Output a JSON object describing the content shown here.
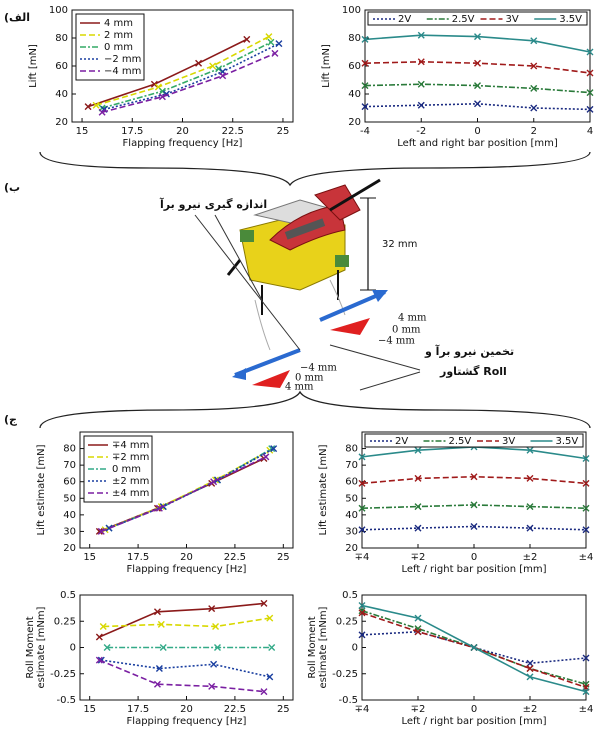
{
  "panels": {
    "a": "(الف",
    "b": "(ب",
    "c": "(ج"
  },
  "diagram": {
    "measure_label": "اندازه گیری نیرو برآ",
    "height_label": "32 mm",
    "upper_positions": [
      "4 mm",
      "0 mm",
      "−4 mm"
    ],
    "lower_positions": [
      "−4 mm",
      "0 mm",
      "4 mm"
    ],
    "estimate_label": [
      "تخمین نیرو برآ و",
      "گشتاور Roll"
    ]
  },
  "chart_data": [
    {
      "type": "line",
      "xlabel": "Flapping frequency [Hz]",
      "ylabel": [
        "Lift [mN]"
      ],
      "legend": "upper left",
      "xlim": [
        14.5,
        25.5
      ],
      "xticks": [
        15,
        17.5,
        20,
        22.5,
        25
      ],
      "ylim": [
        20,
        100
      ],
      "yticks": [
        20,
        40,
        60,
        80,
        100
      ],
      "series": [
        {
          "name": "4 mm",
          "color": "#8b1a1a",
          "dash": "solid",
          "x": [
            15.3,
            18.6,
            20.8,
            23.2
          ],
          "values": [
            31,
            47,
            62,
            79
          ]
        },
        {
          "name": "2 mm",
          "color": "#d8d800",
          "dash": "dashed",
          "x": [
            15.7,
            18.8,
            21.5,
            24.3
          ],
          "values": [
            32,
            45,
            60,
            81
          ]
        },
        {
          "name": "0 mm",
          "color": "#33aa66",
          "dash": "dashdot",
          "x": [
            16,
            19,
            21.8,
            24.4
          ],
          "values": [
            30,
            42,
            58,
            77
          ]
        },
        {
          "name": "−2 mm",
          "color": "#1a3fa0",
          "dash": "dotted",
          "x": [
            16.1,
            19.2,
            22,
            24.8
          ],
          "values": [
            29,
            40,
            56,
            76
          ]
        },
        {
          "name": "−4 mm",
          "color": "#7a1fa2",
          "dash": "dashed",
          "x": [
            16,
            19,
            22,
            24.6
          ],
          "values": [
            27,
            38,
            53,
            69
          ]
        }
      ]
    },
    {
      "type": "line",
      "xlabel": "Left and right bar position [mm]",
      "ylabel": [
        "Lift [mN]"
      ],
      "legend": "upper center",
      "xlim": [
        -4,
        4
      ],
      "xticks": [
        -4,
        -2,
        0,
        2,
        4
      ],
      "ylim": [
        20,
        100
      ],
      "yticks": [
        20,
        40,
        60,
        80,
        100
      ],
      "series": [
        {
          "name": "2V",
          "color": "#1a2a80",
          "dash": "dotted",
          "x": [
            -4,
            -2,
            0,
            2,
            4
          ],
          "values": [
            31,
            32,
            33,
            30,
            29
          ]
        },
        {
          "name": "2.5V",
          "color": "#2a7a3a",
          "dash": "dashdot",
          "x": [
            -4,
            -2,
            0,
            2,
            4
          ],
          "values": [
            46,
            47,
            46,
            44,
            41
          ]
        },
        {
          "name": "3V",
          "color": "#a01a1a",
          "dash": "dashed",
          "x": [
            -4,
            -2,
            0,
            2,
            4
          ],
          "values": [
            62,
            63,
            62,
            60,
            55
          ]
        },
        {
          "name": "3.5V",
          "color": "#2a8a8a",
          "dash": "solid",
          "x": [
            -4,
            -2,
            0,
            2,
            4
          ],
          "values": [
            79,
            82,
            81,
            78,
            70
          ]
        }
      ]
    },
    {
      "type": "line",
      "xlabel": "Flapping frequency [Hz]",
      "ylabel": [
        "Lift estimate [mN]"
      ],
      "legend": "upper left",
      "xlim": [
        14.5,
        25.5
      ],
      "xticks": [
        15,
        17.5,
        20,
        22.5,
        25
      ],
      "ylim": [
        20,
        90
      ],
      "yticks": [
        20,
        30,
        40,
        50,
        60,
        70,
        80
      ],
      "series": [
        {
          "name": "∓4 mm",
          "color": "#8b1a1a",
          "dash": "solid",
          "x": [
            15.5,
            18.5,
            21.3,
            24
          ],
          "values": [
            30,
            44,
            59,
            74
          ]
        },
        {
          "name": "∓2 mm",
          "color": "#d8d800",
          "dash": "dashed",
          "x": [
            15.8,
            18.7,
            21.5,
            24.3
          ],
          "values": [
            31,
            45,
            61,
            79
          ]
        },
        {
          "name": "0 mm",
          "color": "#33aa88",
          "dash": "dashdot",
          "x": [
            16,
            18.8,
            21.6,
            24.4
          ],
          "values": [
            32,
            45,
            61,
            80
          ]
        },
        {
          "name": "±2 mm",
          "color": "#1a3fa0",
          "dash": "dotted",
          "x": [
            16,
            18.8,
            21.6,
            24.5
          ],
          "values": [
            32,
            45,
            61,
            80
          ]
        },
        {
          "name": "±4 mm",
          "color": "#7a1fa2",
          "dash": "dashed",
          "x": [
            15.6,
            18.6,
            21.4,
            24.1
          ],
          "values": [
            30,
            44,
            60,
            75
          ]
        }
      ]
    },
    {
      "type": "line",
      "xlabel": "Left / right bar position [mm]",
      "ylabel": [
        "Lift estimate [mN]"
      ],
      "legend": "upper center",
      "xlim": [
        -4,
        4
      ],
      "xticks": [
        {
          "value": -4,
          "label": "∓4"
        },
        {
          "value": -2,
          "label": "∓2"
        },
        0,
        {
          "value": 2,
          "label": "±2"
        },
        {
          "value": 4,
          "label": "±4"
        }
      ],
      "ylim": [
        20,
        90
      ],
      "yticks": [
        20,
        30,
        40,
        50,
        60,
        70,
        80
      ],
      "series": [
        {
          "name": "2V",
          "color": "#1a2a80",
          "dash": "dotted",
          "x": [
            -4,
            -2,
            0,
            2,
            4
          ],
          "values": [
            31,
            32,
            33,
            32,
            31
          ]
        },
        {
          "name": "2.5V",
          "color": "#2a7a3a",
          "dash": "dashdot",
          "x": [
            -4,
            -2,
            0,
            2,
            4
          ],
          "values": [
            44,
            45,
            46,
            45,
            44
          ]
        },
        {
          "name": "3V",
          "color": "#a01a1a",
          "dash": "dashed",
          "x": [
            -4,
            -2,
            0,
            2,
            4
          ],
          "values": [
            59,
            62,
            63,
            62,
            59
          ]
        },
        {
          "name": "3.5V",
          "color": "#2a8a8a",
          "dash": "solid",
          "x": [
            -4,
            -2,
            0,
            2,
            4
          ],
          "values": [
            75,
            79,
            81,
            79,
            74
          ]
        }
      ]
    },
    {
      "type": "line",
      "xlabel": "Flapping frequency [Hz]",
      "ylabel": [
        "Roll Moment",
        "estimate [mNm]"
      ],
      "xlim": [
        14.5,
        25.5
      ],
      "xticks": [
        15,
        17.5,
        20,
        22.5,
        25
      ],
      "ylim": [
        -0.5,
        0.5
      ],
      "yticks": [
        -0.5,
        -0.25,
        0,
        0.25,
        0.5
      ],
      "series": [
        {
          "color": "#8b1a1a",
          "dash": "solid",
          "x": [
            15.5,
            18.5,
            21.3,
            24
          ],
          "values": [
            0.1,
            0.34,
            0.37,
            0.42
          ]
        },
        {
          "color": "#d8d800",
          "dash": "dashed",
          "x": [
            15.7,
            18.7,
            21.5,
            24.3
          ],
          "values": [
            0.2,
            0.22,
            0.2,
            0.28
          ]
        },
        {
          "color": "#33aa88",
          "dash": "dashdot",
          "x": [
            15.9,
            18.8,
            21.6,
            24.4
          ],
          "values": [
            0,
            0,
            0,
            0
          ]
        },
        {
          "color": "#1a3fa0",
          "dash": "dotted",
          "x": [
            15.6,
            18.6,
            21.4,
            24.3
          ],
          "values": [
            -0.12,
            -0.2,
            -0.16,
            -0.28
          ]
        },
        {
          "color": "#7a1fa2",
          "dash": "dashed",
          "x": [
            15.5,
            18.5,
            21.3,
            24
          ],
          "values": [
            -0.12,
            -0.35,
            -0.37,
            -0.42
          ]
        }
      ]
    },
    {
      "type": "line",
      "xlabel": "Left / right bar position [mm]",
      "ylabel": [
        "Roll Moment",
        "estimate [mNm]"
      ],
      "xlim": [
        -4,
        4
      ],
      "xticks": [
        {
          "value": -4,
          "label": "∓4"
        },
        {
          "value": -2,
          "label": "∓2"
        },
        0,
        {
          "value": 2,
          "label": "±2"
        },
        {
          "value": 4,
          "label": "±4"
        }
      ],
      "ylim": [
        -0.5,
        0.5
      ],
      "yticks": [
        -0.5,
        -0.25,
        0,
        0.25,
        0.5
      ],
      "series": [
        {
          "color": "#1a2a80",
          "dash": "dotted",
          "x": [
            -4,
            -2,
            0,
            2,
            4
          ],
          "values": [
            0.12,
            0.15,
            0,
            -0.15,
            -0.1
          ]
        },
        {
          "color": "#2a7a3a",
          "dash": "dashdot",
          "x": [
            -4,
            -2,
            0,
            2,
            4
          ],
          "values": [
            0.35,
            0.18,
            0,
            -0.2,
            -0.35
          ]
        },
        {
          "color": "#a01a1a",
          "dash": "dashed",
          "x": [
            -4,
            -2,
            0,
            2,
            4
          ],
          "values": [
            0.33,
            0.15,
            0,
            -0.2,
            -0.38
          ]
        },
        {
          "color": "#2a8a8a",
          "dash": "solid",
          "x": [
            -4,
            -2,
            0,
            2,
            4
          ],
          "values": [
            0.4,
            0.28,
            0,
            -0.28,
            -0.42
          ]
        }
      ]
    }
  ]
}
